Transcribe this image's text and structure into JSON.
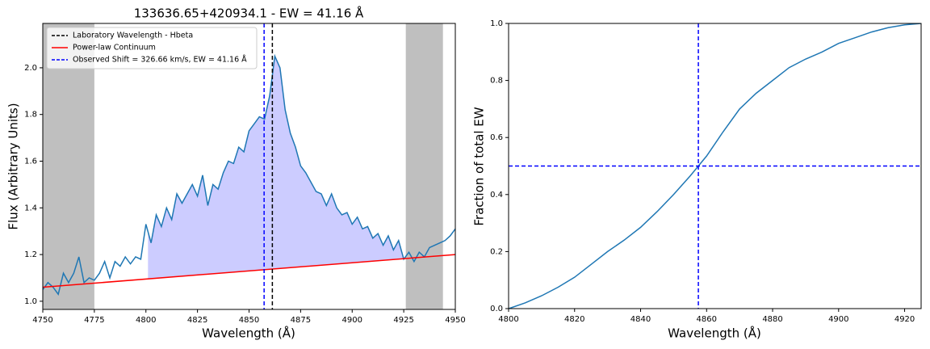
{
  "chart_data": [
    {
      "type": "line",
      "title": "133636.65+420934.1 - EW = 41.16 Å",
      "xlabel": "Wavelength (Å)",
      "ylabel": "Flux (Arbitrary Units)",
      "xlim": [
        4750,
        4950
      ],
      "ylim": [
        0.965,
        2.19
      ],
      "xticks": [
        4750,
        4775,
        4800,
        4825,
        4850,
        4875,
        4900,
        4925,
        4950
      ],
      "yticks": [
        {
          "value": 1,
          "label": "1.0"
        },
        1.2,
        1.4,
        1.6,
        1.8,
        {
          "value": 2,
          "label": "2.0"
        }
      ],
      "x": [
        4750,
        4752.5,
        4755,
        4757.5,
        4760,
        4762.5,
        4765,
        4767.5,
        4770,
        4772.5,
        4775,
        4777.5,
        4780,
        4782.5,
        4785,
        4787.5,
        4790,
        4792.5,
        4795,
        4797.5,
        4800,
        4802.5,
        4805,
        4807.5,
        4810,
        4812.5,
        4815,
        4817.5,
        4820,
        4822.5,
        4825,
        4827.5,
        4830,
        4832.5,
        4835,
        4837.5,
        4840,
        4842.5,
        4845,
        4847.5,
        4850,
        4852.5,
        4855,
        4857.5,
        4860,
        4862.5,
        4865,
        4867.5,
        4870,
        4872.5,
        4875,
        4877.5,
        4880,
        4882.5,
        4885,
        4887.5,
        4890,
        4892.5,
        4895,
        4897.5,
        4900,
        4902.5,
        4905,
        4907.5,
        4910,
        4912.5,
        4915,
        4917.5,
        4920,
        4922.5,
        4925,
        4927.5,
        4930,
        4932.5,
        4935,
        4937.5,
        4940,
        4942.5,
        4945,
        4947.5,
        4950
      ],
      "series": [
        {
          "color": "#1f77b4",
          "values": [
            1.05,
            1.08,
            1.06,
            1.03,
            1.12,
            1.08,
            1.12,
            1.19,
            1.08,
            1.1,
            1.09,
            1.12,
            1.17,
            1.1,
            1.17,
            1.15,
            1.19,
            1.16,
            1.19,
            1.18,
            1.33,
            1.25,
            1.37,
            1.32,
            1.4,
            1.35,
            1.46,
            1.42,
            1.46,
            1.5,
            1.45,
            1.54,
            1.41,
            1.5,
            1.48,
            1.55,
            1.6,
            1.59,
            1.66,
            1.64,
            1.73,
            1.76,
            1.79,
            1.78,
            1.88,
            2.05,
            2.0,
            1.82,
            1.72,
            1.66,
            1.58,
            1.55,
            1.51,
            1.47,
            1.46,
            1.41,
            1.46,
            1.4,
            1.37,
            1.38,
            1.33,
            1.36,
            1.31,
            1.32,
            1.27,
            1.29,
            1.24,
            1.28,
            1.22,
            1.26,
            1.18,
            1.21,
            1.17,
            1.21,
            1.19,
            1.23,
            1.24,
            1.25,
            1.26,
            1.28,
            1.31
          ]
        }
      ],
      "continuum": {
        "name": "Power-law Continuum",
        "color": "#ff0000",
        "x": [
          4750,
          4950
        ],
        "values": [
          1.06,
          1.2
        ]
      },
      "vlines": [
        {
          "name": "Laboratory Wavelength - Hbeta",
          "color": "#000000",
          "x": 4861.3
        },
        {
          "name": "Observed Shift = 326.66 km/s, EW = 41.16 Å",
          "color": "#0000ff",
          "x": 4857.3
        }
      ],
      "shaded_spans": [
        [
          4750,
          4775
        ],
        [
          4926,
          4944
        ]
      ],
      "shade_color": "#bfbfbf",
      "fill_between": [
        4801,
        4926
      ],
      "fill_color": "#ccccff",
      "legend": "upper left"
    },
    {
      "type": "line",
      "xlabel": "Wavelength (Å)",
      "ylabel": "Fraction of total EW",
      "xlim": [
        4800,
        4925
      ],
      "ylim": [
        0,
        1
      ],
      "xticks": [
        4800,
        4820,
        4840,
        4860,
        4880,
        4900,
        4920
      ],
      "yticks": [
        {
          "value": 0,
          "label": "0.0"
        },
        0.2,
        0.4,
        0.6,
        0.8,
        {
          "value": 1,
          "label": "1.0"
        }
      ],
      "x": [
        4800,
        4805,
        4810,
        4815,
        4820,
        4825,
        4830,
        4835,
        4840,
        4845,
        4850,
        4855,
        4857.5,
        4860,
        4865,
        4870,
        4875,
        4880,
        4885,
        4890,
        4895,
        4900,
        4905,
        4910,
        4915,
        4920,
        4925
      ],
      "series": [
        {
          "color": "#1f77b4",
          "values": [
            0,
            0.02,
            0.045,
            0.075,
            0.11,
            0.155,
            0.2,
            0.24,
            0.285,
            0.34,
            0.4,
            0.465,
            0.5,
            0.535,
            0.62,
            0.7,
            0.755,
            0.8,
            0.845,
            0.875,
            0.9,
            0.93,
            0.95,
            0.97,
            0.985,
            0.995,
            1.0
          ]
        }
      ],
      "vlines": [
        {
          "color": "#0000ff",
          "x": 4857.5
        }
      ],
      "hlines": [
        {
          "color": "#0000ff",
          "y": 0.5
        }
      ]
    }
  ]
}
